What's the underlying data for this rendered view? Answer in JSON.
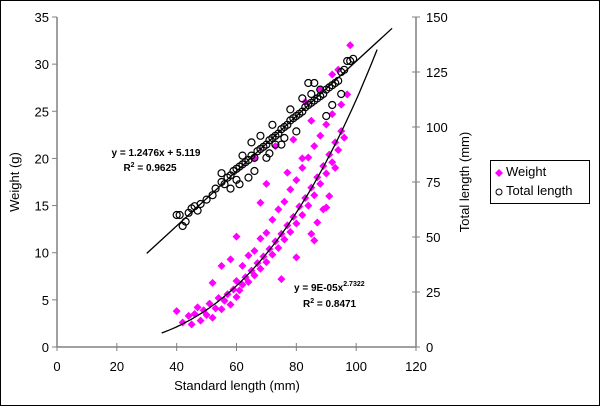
{
  "chart_data": {
    "type": "scatter",
    "title": "",
    "xlabel": "Standard length (mm)",
    "ylabel": "Weight (g)",
    "y2label": "Total length (mm)",
    "xlim": [
      0,
      120
    ],
    "ylim": [
      0,
      35
    ],
    "y2lim": [
      0,
      150
    ],
    "xticks": [
      "0",
      "20",
      "40",
      "60",
      "80",
      "100",
      "120"
    ],
    "yticks": [
      "0",
      "5",
      "10",
      "15",
      "20",
      "25",
      "30",
      "35"
    ],
    "y2ticks": [
      "0",
      "25",
      "50",
      "75",
      "100",
      "125",
      "150"
    ],
    "grid": false,
    "legend_position": "right",
    "series": [
      {
        "name": "Weight",
        "axis": "left",
        "marker": "diamond",
        "color": "#FF00FF",
        "points": [
          [
            40,
            3.8
          ],
          [
            42,
            2.6
          ],
          [
            44,
            3.3
          ],
          [
            45,
            2.4
          ],
          [
            46,
            3.5
          ],
          [
            47,
            4.2
          ],
          [
            48,
            2.8
          ],
          [
            49,
            3.9
          ],
          [
            50,
            3.4
          ],
          [
            51,
            4.6
          ],
          [
            52,
            3.1
          ],
          [
            53,
            4.1
          ],
          [
            54,
            5.2
          ],
          [
            55,
            4.0
          ],
          [
            56,
            4.9
          ],
          [
            57,
            5.6
          ],
          [
            58,
            4.5
          ],
          [
            59,
            6.1
          ],
          [
            60,
            5.3
          ],
          [
            60,
            7.0
          ],
          [
            61,
            6.0
          ],
          [
            62,
            6.6
          ],
          [
            62,
            8.6
          ],
          [
            63,
            7.4
          ],
          [
            64,
            6.9
          ],
          [
            64,
            9.7
          ],
          [
            65,
            8.1
          ],
          [
            66,
            7.6
          ],
          [
            66,
            10.2
          ],
          [
            67,
            8.9
          ],
          [
            68,
            8.3
          ],
          [
            68,
            11.5
          ],
          [
            69,
            9.6
          ],
          [
            70,
            9.0
          ],
          [
            70,
            12.1
          ],
          [
            71,
            10.4
          ],
          [
            72,
            9.8
          ],
          [
            72,
            13.5
          ],
          [
            73,
            11.2
          ],
          [
            74,
            10.5
          ],
          [
            74,
            14.6
          ],
          [
            75,
            12.0
          ],
          [
            75,
            7.2
          ],
          [
            76,
            11.4
          ],
          [
            76,
            15.4
          ],
          [
            77,
            12.9
          ],
          [
            78,
            12.2
          ],
          [
            78,
            16.7
          ],
          [
            79,
            13.8
          ],
          [
            80,
            13.1
          ],
          [
            80,
            17.7
          ],
          [
            80,
            9.5
          ],
          [
            81,
            14.9
          ],
          [
            82,
            14.0
          ],
          [
            82,
            19.0
          ],
          [
            83,
            15.8
          ],
          [
            84,
            15.0
          ],
          [
            84,
            20.1
          ],
          [
            85,
            16.9
          ],
          [
            85,
            12.0
          ],
          [
            86,
            16.1
          ],
          [
            86,
            21.3
          ],
          [
            87,
            18.0
          ],
          [
            87,
            13.2
          ],
          [
            88,
            17.3
          ],
          [
            88,
            22.4
          ],
          [
            89,
            19.2
          ],
          [
            89,
            14.6
          ],
          [
            90,
            18.4
          ],
          [
            90,
            23.6
          ],
          [
            91,
            20.4
          ],
          [
            91,
            16.0
          ],
          [
            92,
            19.6
          ],
          [
            92,
            24.7
          ],
          [
            93,
            21.7
          ],
          [
            94,
            20.9
          ],
          [
            95,
            22.9
          ],
          [
            96,
            22.2
          ],
          [
            97,
            26.8
          ],
          [
            98,
            32.0
          ],
          [
            66,
            20.0
          ],
          [
            73,
            21.3
          ],
          [
            85,
            24.0
          ],
          [
            88,
            27.3
          ],
          [
            92,
            28.9
          ],
          [
            94,
            29.4
          ],
          [
            83,
            26.0
          ],
          [
            77,
            18.5
          ],
          [
            70,
            17.3
          ],
          [
            68,
            15.3
          ],
          [
            58,
            9.3
          ],
          [
            60,
            11.7
          ],
          [
            55,
            8.6
          ],
          [
            52,
            6.8
          ],
          [
            95,
            25.7
          ],
          [
            93,
            19.0
          ],
          [
            90,
            14.8
          ],
          [
            86,
            11.3
          ],
          [
            82,
            20.0
          ],
          [
            79,
            22.0
          ]
        ]
      },
      {
        "name": "Total length",
        "axis": "right",
        "marker": "circle-open",
        "color": "#000000",
        "points": [
          [
            40,
            60
          ],
          [
            41,
            60
          ],
          [
            42,
            55
          ],
          [
            43,
            57
          ],
          [
            44,
            61
          ],
          [
            45,
            63
          ],
          [
            46,
            64
          ],
          [
            47,
            62
          ],
          [
            48,
            65
          ],
          [
            50,
            67
          ],
          [
            52,
            69
          ],
          [
            53,
            72
          ],
          [
            55,
            75
          ],
          [
            56,
            74
          ],
          [
            57,
            77
          ],
          [
            58,
            78
          ],
          [
            59,
            80
          ],
          [
            60,
            81
          ],
          [
            61,
            82
          ],
          [
            62,
            83
          ],
          [
            62,
            87
          ],
          [
            63,
            84
          ],
          [
            64,
            85
          ],
          [
            65,
            87
          ],
          [
            66,
            86
          ],
          [
            67,
            89
          ],
          [
            68,
            90
          ],
          [
            69,
            91
          ],
          [
            70,
            92
          ],
          [
            71,
            94
          ],
          [
            72,
            95
          ],
          [
            73,
            96
          ],
          [
            74,
            97
          ],
          [
            75,
            99
          ],
          [
            76,
            100
          ],
          [
            77,
            101
          ],
          [
            78,
            103
          ],
          [
            79,
            104
          ],
          [
            80,
            105
          ],
          [
            81,
            106
          ],
          [
            82,
            107
          ],
          [
            83,
            109
          ],
          [
            84,
            110
          ],
          [
            85,
            111
          ],
          [
            86,
            112
          ],
          [
            87,
            113
          ],
          [
            88,
            114
          ],
          [
            89,
            115
          ],
          [
            90,
            117
          ],
          [
            91,
            118
          ],
          [
            92,
            119
          ],
          [
            93,
            120
          ],
          [
            94,
            121
          ],
          [
            95,
            125
          ],
          [
            96,
            126
          ],
          [
            97,
            130
          ],
          [
            98,
            130
          ],
          [
            99,
            131
          ],
          [
            65,
            93
          ],
          [
            68,
            96
          ],
          [
            72,
            101
          ],
          [
            78,
            108
          ],
          [
            84,
            120
          ],
          [
            86,
            120
          ],
          [
            80,
            98
          ],
          [
            75,
            92
          ],
          [
            70,
            86
          ],
          [
            66,
            80
          ],
          [
            60,
            76
          ],
          [
            58,
            72
          ],
          [
            55,
            79
          ],
          [
            90,
            105
          ],
          [
            92,
            110
          ],
          [
            95,
            115
          ],
          [
            88,
            117
          ],
          [
            76,
            95
          ],
          [
            64,
            77
          ],
          [
            61,
            74
          ],
          [
            71,
            88
          ],
          [
            73,
            92
          ],
          [
            82,
            113
          ],
          [
            85,
            115
          ]
        ]
      }
    ],
    "trendlines": [
      {
        "series": "Total length",
        "type": "linear",
        "slope": 1.2476,
        "intercept": 5.119,
        "x_range": [
          30,
          112
        ],
        "equation": "y = 1.2476x + 5.119",
        "r2_label": "R",
        "r2_value": " = 0.9625"
      },
      {
        "series": "Weight",
        "type": "power",
        "coef": 9e-05,
        "exponent": 2.7322,
        "x_range": [
          35,
          107
        ],
        "equation_base": "y = 9E-05x",
        "equation_exp": "2.7322",
        "r2_label": "R",
        "r2_value": " = 0.8471"
      }
    ]
  },
  "legend": {
    "items": [
      {
        "label": "Weight"
      },
      {
        "label": "Total length"
      }
    ]
  }
}
